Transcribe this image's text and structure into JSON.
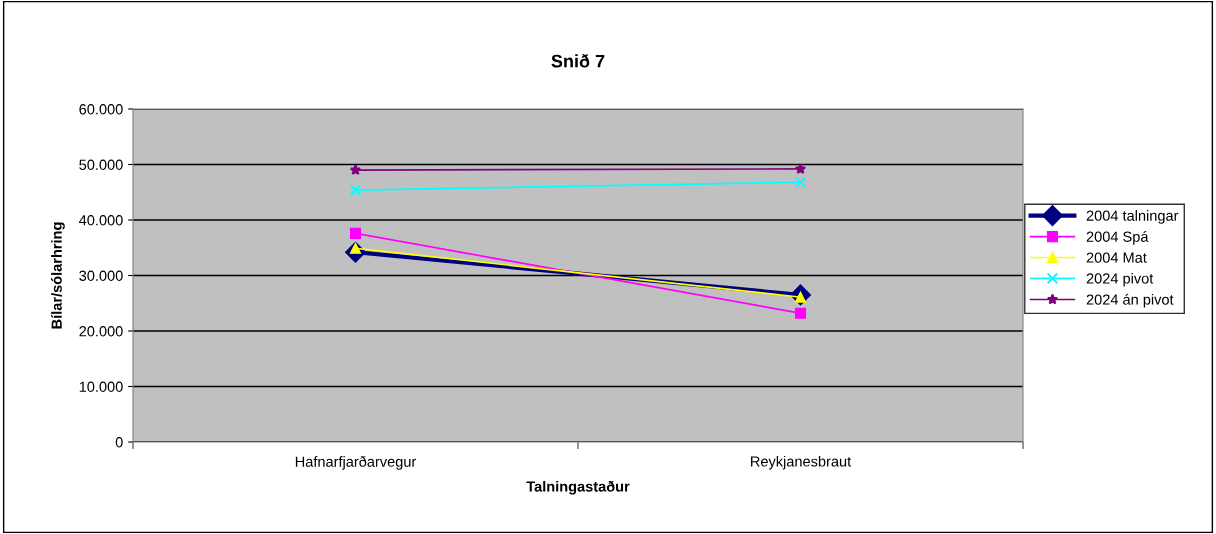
{
  "chart_data": {
    "type": "line",
    "title": "Snið 7",
    "xlabel": "Talningastaður",
    "ylabel": "Bílar/sólarhring",
    "categories": [
      "Hafnarfjarðarvegur",
      "Reykjanesbraut"
    ],
    "series": [
      {
        "name": "2004 talningar",
        "color": "#000080",
        "values": [
          34200,
          26500
        ],
        "marker": "diamond"
      },
      {
        "name": "2004 Spá",
        "color": "#ff00ff",
        "values": [
          37600,
          23200
        ],
        "marker": "square"
      },
      {
        "name": "2004 Mat",
        "color": "#ffff00",
        "values": [
          34900,
          26100
        ],
        "marker": "triangle"
      },
      {
        "name": "2024 pivot",
        "color": "#00ffff",
        "values": [
          45400,
          46800
        ],
        "marker": "cross"
      },
      {
        "name": "2024 án pivot",
        "color": "#800080",
        "values": [
          49000,
          49200
        ],
        "marker": "star"
      }
    ],
    "ylim": [
      0,
      60000
    ],
    "yticks": [
      {
        "value": 0,
        "label": "0"
      },
      {
        "value": 10000,
        "label": "10.000"
      },
      {
        "value": 20000,
        "label": "20.000"
      },
      {
        "value": 30000,
        "label": "30.000"
      },
      {
        "value": 40000,
        "label": "40.000"
      },
      {
        "value": 50000,
        "label": "50.000"
      },
      {
        "value": 60000,
        "label": "60.000"
      }
    ],
    "grid": "y",
    "legend": "right",
    "line_style": "solid"
  }
}
